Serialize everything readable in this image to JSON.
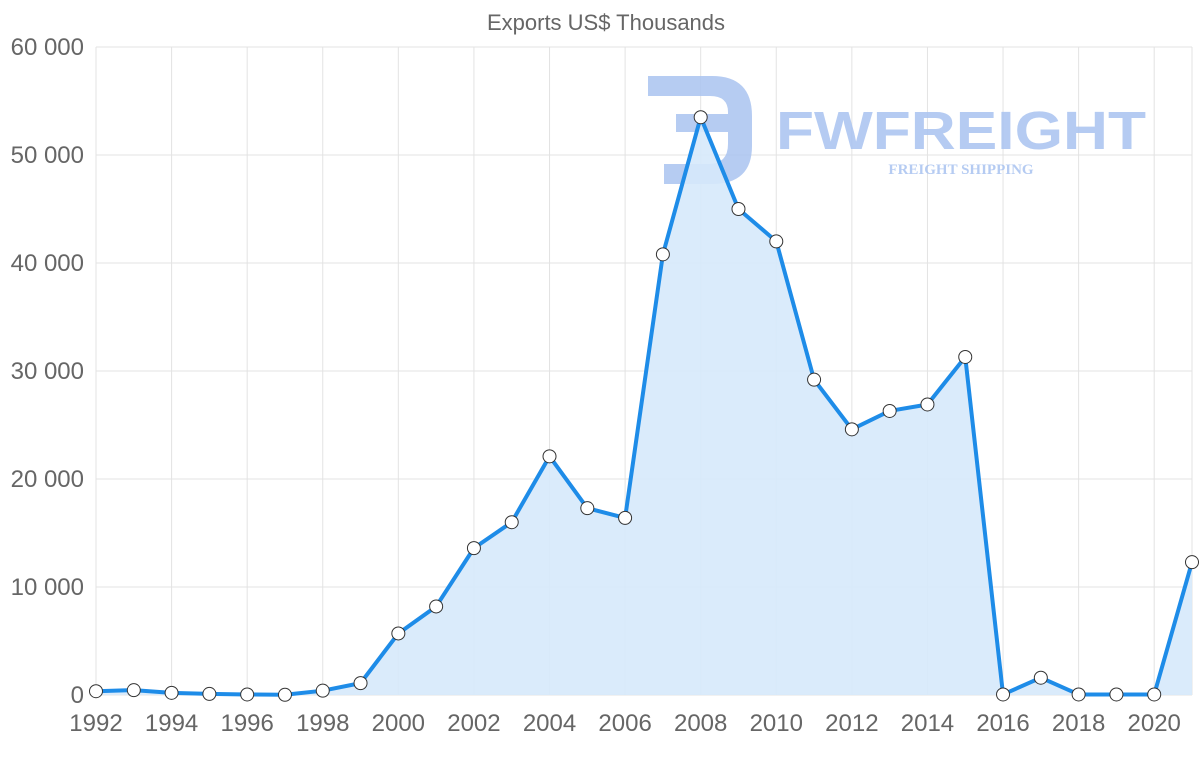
{
  "chart_data": {
    "type": "area",
    "title": "Exports US$ Thousands",
    "xlabel": "",
    "ylabel": "",
    "x": [
      1992,
      1993,
      1994,
      1995,
      1996,
      1997,
      1998,
      1999,
      2000,
      2001,
      2002,
      2003,
      2004,
      2005,
      2006,
      2007,
      2008,
      2009,
      2010,
      2011,
      2012,
      2013,
      2014,
      2015,
      2016,
      2017,
      2018,
      2019,
      2020,
      2021
    ],
    "series": [
      {
        "name": "Exports US$ Thousands",
        "values": [
          350,
          450,
          200,
          100,
          50,
          20,
          400,
          1100,
          5700,
          8200,
          13600,
          16000,
          22100,
          17300,
          16400,
          40800,
          53500,
          45000,
          42000,
          29200,
          24600,
          26300,
          26900,
          31300,
          50,
          1600,
          50,
          50,
          50,
          12300
        ]
      }
    ],
    "x_tick_labels": [
      "1992",
      "1994",
      "1996",
      "1998",
      "2000",
      "2002",
      "2004",
      "2006",
      "2008",
      "2010",
      "2012",
      "2014",
      "2016",
      "2018",
      "2020"
    ],
    "y_tick_labels": [
      "0",
      "10 000",
      "20 000",
      "30 000",
      "40 000",
      "50 000",
      "60 000"
    ],
    "ylim": [
      0,
      60000
    ],
    "xlim": [
      1992,
      2021
    ],
    "grid": true,
    "line_color": "#1e8ce8",
    "fill_color": "#d6e9fb",
    "marker_fill": "#ffffff",
    "marker_stroke": "#333333"
  },
  "watermark": {
    "brand": "FWFREIGHT",
    "tagline": "FREIGHT SHIPPING",
    "color": "#a9c3f0"
  }
}
